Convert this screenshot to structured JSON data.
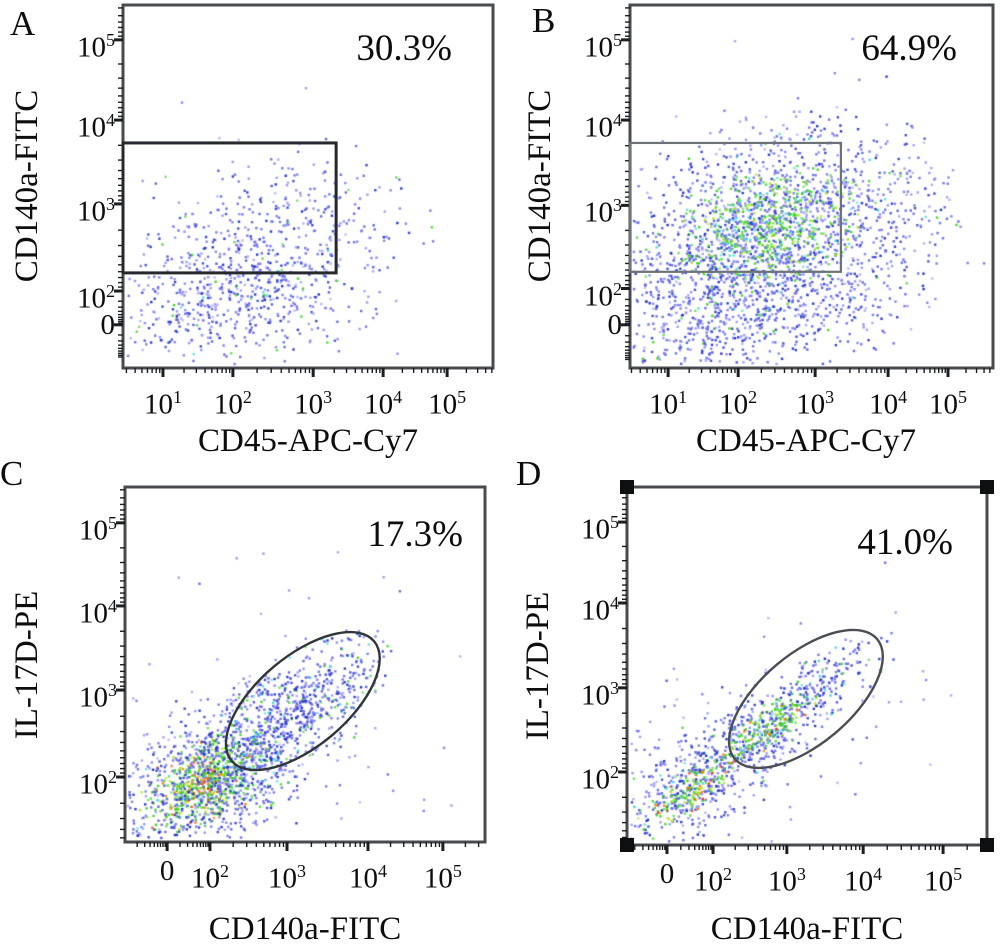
{
  "figure": {
    "description": "Flow cytometry pseudocolor dot plots, four panels with gates and gated-population percentages"
  },
  "render": {
    "dot_size": 2.4,
    "alpha_min": 0.6,
    "alpha_range": 0.4,
    "seed": 20240311,
    "frame_color": "#474b4f",
    "tick_color": "#1c1f22"
  },
  "palettes": {
    "bluemix": [
      [
        "#2633cc",
        0.38
      ],
      [
        "#6a6af0",
        0.48
      ],
      [
        "#9d9df8",
        0.09
      ],
      [
        "#3fd321",
        0.04
      ],
      [
        "#3cd6d6",
        0.01
      ]
    ],
    "bluemix2": [
      [
        "#2633cc",
        0.42
      ],
      [
        "#6a6af0",
        0.45
      ],
      [
        "#9d9df8",
        0.07
      ],
      [
        "#3fd321",
        0.04
      ],
      [
        "#3cd6d6",
        0.02
      ]
    ],
    "greenmix": [
      [
        "#3fd321",
        0.52
      ],
      [
        "#a6e31c",
        0.18
      ],
      [
        "#3cd6d6",
        0.1
      ],
      [
        "#6a6af0",
        0.2
      ]
    ],
    "greenmix2": [
      [
        "#3fd321",
        0.6
      ],
      [
        "#a6e31c",
        0.22
      ],
      [
        "#3cd6d6",
        0.05
      ],
      [
        "#ff7a00",
        0.08
      ],
      [
        "#ea3b0c",
        0.05
      ]
    ],
    "greenmix3": [
      [
        "#3fd321",
        0.6
      ],
      [
        "#a6e31c",
        0.15
      ],
      [
        "#ff7a00",
        0.12
      ],
      [
        "#ea3b0c",
        0.05
      ],
      [
        "#3cd6d6",
        0.08
      ]
    ],
    "hot": [
      [
        "#ea3b0c",
        0.55
      ],
      [
        "#ff7a00",
        0.45
      ]
    ],
    "armmix": [
      [
        "#2633cc",
        0.45
      ],
      [
        "#6a6af0",
        0.35
      ],
      [
        "#3cd6d6",
        0.08
      ],
      [
        "#3fd321",
        0.1
      ],
      [
        "#9d9df8",
        0.02
      ]
    ],
    "sparse": [
      [
        "#6a6af0",
        0.55
      ],
      [
        "#9d9df8",
        0.35
      ],
      [
        "#2633cc",
        0.1
      ]
    ]
  },
  "chart_data": [
    {
      "panel": "A",
      "type": "scatter",
      "percent": "30.3%",
      "xlabel": "CD45-APC-Cy7",
      "ylabel": "CD140a-FITC",
      "x_scale": "biexponential log 10^1 to 10^5",
      "y_scale": "biexponential log 0 to 10^5",
      "population_desc": "Sparse blue cloud, CD45 ~10^1.3-10^2.8, CD140a ~10^1.8-10^3.2; 30.3% inside rectangular gate (CD45 < ~2x10^3, CD140a ~1.5x10^2-5x10^3)",
      "xticks": [
        {
          "base": "10",
          "exp": "1",
          "u": 0.108
        },
        {
          "base": "10",
          "exp": "2",
          "u": 0.297
        },
        {
          "base": "10",
          "exp": "3",
          "u": 0.514
        },
        {
          "base": "10",
          "exp": "4",
          "u": 0.703
        },
        {
          "base": "10",
          "exp": "5",
          "u": 0.876
        }
      ],
      "yticks": [
        {
          "base": "10",
          "exp": "5",
          "v": 0.096
        },
        {
          "base": "10",
          "exp": "4",
          "v": 0.317
        },
        {
          "base": "10",
          "exp": "3",
          "v": 0.548
        },
        {
          "base": "10",
          "exp": "2",
          "v": 0.788
        },
        {
          "base": "0",
          "exp": "",
          "v": 0.881
        }
      ],
      "gate": {
        "shape": "rect",
        "x0u": 0.0,
        "x1u": 0.576,
        "y0v": 0.38,
        "y1v": 0.738,
        "stroke": "#26292c",
        "width": 3,
        "data_x_range": "axis-min to ~2x10^3",
        "data_y_range": "~1.5x10^2 to ~5x10^3"
      },
      "corner_handles": false,
      "clusters": [
        {
          "n": 380,
          "cx": 150,
          "cy": 230,
          "sx": 70,
          "sy": 40,
          "rot": -12,
          "palette": "bluemix",
          "rlim": 2.4
        },
        {
          "n": 400,
          "cx": 112,
          "cy": 300,
          "sx": 62,
          "sy": 30,
          "rot": -6,
          "palette": "bluemix",
          "rlim": 2.4
        },
        {
          "n": 110,
          "cx": 140,
          "cy": 262,
          "sx": 105,
          "sy": 70,
          "rot": -15,
          "palette": "sparse",
          "rlim": 2.8
        }
      ]
    },
    {
      "panel": "B",
      "type": "scatter",
      "percent": "64.9%",
      "xlabel": "CD45-APC-Cy7",
      "ylabel": "CD140a-FITC",
      "x_scale": "biexponential log 10^1 to 10^5",
      "y_scale": "biexponential log 0 to 10^5",
      "population_desc": "Dense cloud with green core at CD45 ~10^2-10^2.6, CD140a ~10^2.5-10^3; 64.9% inside rectangular gate",
      "xticks": [
        {
          "base": "10",
          "exp": "1",
          "u": 0.105
        },
        {
          "base": "10",
          "exp": "2",
          "u": 0.298
        },
        {
          "base": "10",
          "exp": "3",
          "u": 0.51
        },
        {
          "base": "10",
          "exp": "4",
          "u": 0.711
        },
        {
          "base": "10",
          "exp": "5",
          "u": 0.876
        }
      ],
      "yticks": [
        {
          "base": "10",
          "exp": "5",
          "v": 0.096
        },
        {
          "base": "10",
          "exp": "4",
          "v": 0.317
        },
        {
          "base": "10",
          "exp": "3",
          "v": 0.552
        },
        {
          "base": "10",
          "exp": "2",
          "v": 0.781
        },
        {
          "base": "0",
          "exp": "",
          "v": 0.881
        }
      ],
      "gate": {
        "shape": "rect",
        "x0u": 0.0,
        "x1u": 0.581,
        "y0v": 0.38,
        "y1v": 0.735,
        "stroke": "#6d7276",
        "width": 2.2,
        "data_x_range": "axis-min to ~2x10^3",
        "data_y_range": "~1.5x10^2 to ~5x10^3"
      },
      "corner_handles": false,
      "clusters": [
        {
          "n": 1750,
          "cx": 138,
          "cy": 238,
          "sx": 88,
          "sy": 56,
          "rot": -18,
          "palette": "bluemix2",
          "rlim": 2.3
        },
        {
          "n": 520,
          "cx": 142,
          "cy": 222,
          "sx": 46,
          "sy": 28,
          "rot": -18,
          "palette": "greenmix",
          "rlim": 2.2
        },
        {
          "n": 300,
          "cx": 112,
          "cy": 318,
          "sx": 82,
          "sy": 30,
          "rot": -5,
          "palette": "bluemix",
          "rlim": 2.4
        },
        {
          "n": 130,
          "cx": 150,
          "cy": 250,
          "sx": 130,
          "sy": 85,
          "rot": -15,
          "palette": "sparse",
          "rlim": 2.6
        }
      ]
    },
    {
      "panel": "C",
      "type": "scatter",
      "percent": "17.3%",
      "xlabel": "CD140a-FITC",
      "ylabel": "IL-17D-PE",
      "x_scale": "biexponential log 0 to 10^5",
      "y_scale": "biexponential log 10^2 to 10^5",
      "population_desc": "Hot red/green core at CD140a ~10^2, IL-17D ~6x10^1; diagonal arm rising into tilted ellipse gate centered ~ (1.6x10^3, 7x10^2); 17.3% gated",
      "xticks": [
        {
          "base": "0",
          "exp": "",
          "u": 0.117
        },
        {
          "base": "10",
          "exp": "2",
          "u": 0.236
        },
        {
          "base": "10",
          "exp": "3",
          "u": 0.45
        },
        {
          "base": "10",
          "exp": "4",
          "u": 0.675
        },
        {
          "base": "10",
          "exp": "5",
          "u": 0.883
        }
      ],
      "yticks": [
        {
          "base": "10",
          "exp": "5",
          "v": 0.101
        },
        {
          "base": "10",
          "exp": "4",
          "v": 0.335
        },
        {
          "base": "10",
          "exp": "3",
          "v": 0.572
        },
        {
          "base": "10",
          "exp": "2",
          "v": 0.817
        }
      ],
      "gate": {
        "shape": "ellipse",
        "cxu": 0.494,
        "cyv": 0.603,
        "rx": 93,
        "ry": 45,
        "rot": -40,
        "stroke": "#303538",
        "width": 2.4,
        "data_center": "CD140a ~1.6x10^3, IL-17D ~7x10^2"
      },
      "corner_handles": false,
      "clusters": [
        {
          "n": 55,
          "cx": 79,
          "cy": 296,
          "sx": 11,
          "sy": 6,
          "rot": -30,
          "palette": "hot",
          "rlim": 2.2
        },
        {
          "n": 470,
          "cx": 79,
          "cy": 296,
          "sx": 33,
          "sy": 19,
          "rot": -30,
          "palette": "greenmix2",
          "rlim": 2.2
        },
        {
          "n": 820,
          "cx": 88,
          "cy": 288,
          "sx": 58,
          "sy": 33,
          "rot": -32,
          "palette": "bluemix2",
          "rlim": 2.4
        },
        {
          "n": 460,
          "cx": 158,
          "cy": 237,
          "sx": 56,
          "sy": 25,
          "rot": -40,
          "palette": "armmix",
          "rlim": 2.4
        },
        {
          "n": 140,
          "cx": 206,
          "cy": 200,
          "sx": 36,
          "sy": 17,
          "rot": -40,
          "palette": "bluemix",
          "rlim": 2.4
        },
        {
          "n": 140,
          "cx": 120,
          "cy": 268,
          "sx": 115,
          "sy": 78,
          "rot": -20,
          "palette": "sparse",
          "rlim": 2.7
        }
      ]
    },
    {
      "panel": "D",
      "type": "scatter",
      "percent": "41.0%",
      "xlabel": "CD140a-FITC",
      "ylabel": "IL-17D-PE",
      "x_scale": "biexponential log 0 to 10^5",
      "y_scale": "biexponential log 10^2 to 10^5",
      "population_desc": "Narrow diagonal cluster from (~10^1,4x10^1) to (~2x10^3,10^3) with green/orange spine; tilted ellipse gate centered ~ (1.6x10^3, 7x10^2); 41.0% gated; plot frame shows selection corner handles",
      "xticks": [
        {
          "base": "0",
          "exp": "",
          "u": 0.111
        },
        {
          "base": "10",
          "exp": "2",
          "u": 0.239
        },
        {
          "base": "10",
          "exp": "3",
          "u": 0.444
        },
        {
          "base": "10",
          "exp": "4",
          "u": 0.656
        },
        {
          "base": "10",
          "exp": "5",
          "u": 0.878
        }
      ],
      "yticks": [
        {
          "base": "10",
          "exp": "5",
          "v": 0.098
        },
        {
          "base": "10",
          "exp": "4",
          "v": 0.324
        },
        {
          "base": "10",
          "exp": "3",
          "v": 0.561
        },
        {
          "base": "10",
          "exp": "2",
          "v": 0.796
        }
      ],
      "gate": {
        "shape": "ellipse",
        "cxu": 0.497,
        "cyv": 0.592,
        "rx": 93,
        "ry": 45,
        "rot": -40,
        "stroke": "#4a4e52",
        "width": 2.4,
        "data_center": "CD140a ~1.6x10^3, IL-17D ~7x10^2"
      },
      "corner_handles": true,
      "handle_color": "#0e0f10",
      "clusters": [
        {
          "n": 400,
          "cx": 66,
          "cy": 300,
          "sx": 46,
          "sy": 25,
          "rot": -35,
          "palette": "bluemix2",
          "rlim": 2.4
        },
        {
          "n": 150,
          "cx": 63,
          "cy": 303,
          "sx": 30,
          "sy": 10,
          "rot": -35,
          "palette": "greenmix3",
          "rlim": 2.2
        },
        {
          "n": 290,
          "cx": 136,
          "cy": 245,
          "sx": 40,
          "sy": 19,
          "rot": -35,
          "palette": "bluemix2",
          "rlim": 2.4
        },
        {
          "n": 160,
          "cx": 141,
          "cy": 239,
          "sx": 28,
          "sy": 9,
          "rot": -35,
          "palette": "greenmix3",
          "rlim": 2.2
        },
        {
          "n": 150,
          "cx": 196,
          "cy": 196,
          "sx": 38,
          "sy": 15,
          "rot": -35,
          "palette": "armmix",
          "rlim": 2.4
        },
        {
          "n": 120,
          "cx": 120,
          "cy": 268,
          "sx": 105,
          "sy": 70,
          "rot": -25,
          "palette": "sparse",
          "rlim": 2.7
        }
      ]
    }
  ]
}
